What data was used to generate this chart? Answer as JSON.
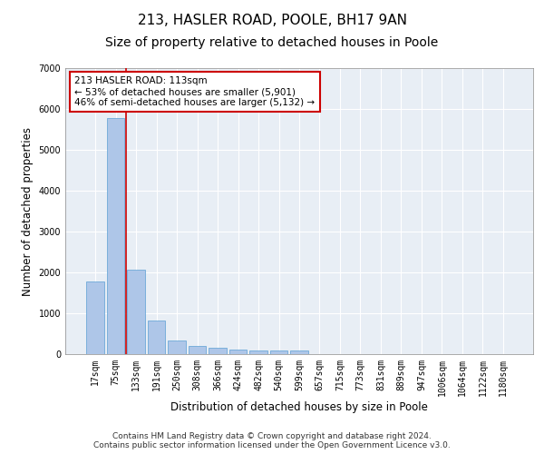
{
  "title_line1": "213, HASLER ROAD, POOLE, BH17 9AN",
  "title_line2": "Size of property relative to detached houses in Poole",
  "xlabel": "Distribution of detached houses by size in Poole",
  "ylabel": "Number of detached properties",
  "footer_line1": "Contains HM Land Registry data © Crown copyright and database right 2024.",
  "footer_line2": "Contains public sector information licensed under the Open Government Licence v3.0.",
  "categories": [
    "17sqm",
    "75sqm",
    "133sqm",
    "191sqm",
    "250sqm",
    "308sqm",
    "366sqm",
    "424sqm",
    "482sqm",
    "540sqm",
    "599sqm",
    "657sqm",
    "715sqm",
    "773sqm",
    "831sqm",
    "889sqm",
    "947sqm",
    "1006sqm",
    "1064sqm",
    "1122sqm",
    "1180sqm"
  ],
  "values": [
    1780,
    5780,
    2060,
    820,
    340,
    195,
    155,
    115,
    100,
    90,
    95,
    0,
    0,
    0,
    0,
    0,
    0,
    0,
    0,
    0,
    0
  ],
  "bar_color": "#aec6e8",
  "bar_edge_color": "#5a9fd4",
  "vline_color": "#cc0000",
  "annotation_text": "213 HASLER ROAD: 113sqm\n← 53% of detached houses are smaller (5,901)\n46% of semi-detached houses are larger (5,132) →",
  "annotation_box_color": "#ffffff",
  "annotation_box_edge": "#cc0000",
  "ylim": [
    0,
    7000
  ],
  "yticks": [
    0,
    1000,
    2000,
    3000,
    4000,
    5000,
    6000,
    7000
  ],
  "bg_color": "#e8eef5",
  "grid_color": "#ffffff",
  "title_fontsize": 11,
  "subtitle_fontsize": 10,
  "axis_label_fontsize": 8.5,
  "tick_fontsize": 7,
  "annotation_fontsize": 7.5,
  "footer_fontsize": 6.5
}
